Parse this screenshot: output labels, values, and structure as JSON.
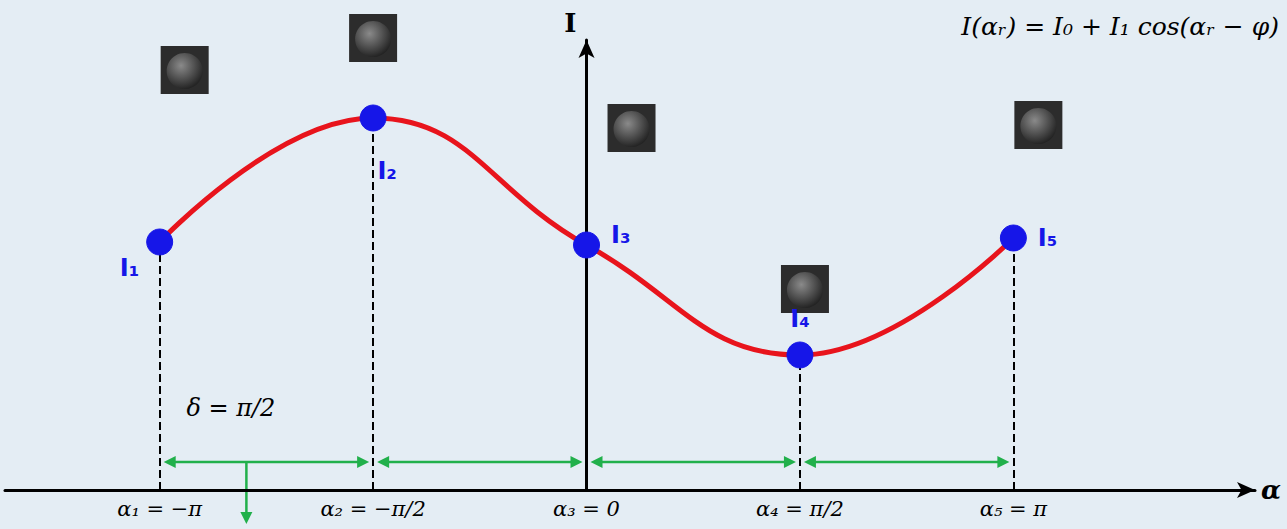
{
  "chart_data": {
    "type": "line",
    "x_label": "α",
    "y_label": "I",
    "annotations": [
      {
        "text": "I(αᵣ) = I₀ + I₁ cos(αᵣ − φ)"
      },
      {
        "text": "δ = π/2"
      }
    ],
    "x": [
      -3.14159,
      -1.5708,
      0,
      1.5708,
      3.14159
    ],
    "values": [
      248,
      372,
      245,
      135,
      252
    ],
    "point_labels": [
      "I₁",
      "I₂",
      "I₃",
      "I₄",
      "I₅"
    ],
    "color": "#e8141c",
    "colors": [
      "#1616e8",
      "#1616e8",
      "#1616e8",
      "#1616e8",
      "#1616e8"
    ],
    "marker": "circle",
    "line_style": "solid",
    "xlim": [
      -4.28,
      4.92
    ],
    "xticks": [
      {
        "value": -3.14159,
        "label": "α₁ = −π"
      },
      {
        "value": -1.5708,
        "label": "α₂ = −π/2"
      },
      {
        "value": 0,
        "label": "α₃ = 0"
      },
      {
        "value": 1.5708,
        "label": "α₄ = π/2"
      },
      {
        "value": 3.14159,
        "label": "α₅ = π"
      }
    ],
    "ylim": [
      0,
      450
    ],
    "yticks": [],
    "grid": false,
    "tick_labels": "x"
  }
}
